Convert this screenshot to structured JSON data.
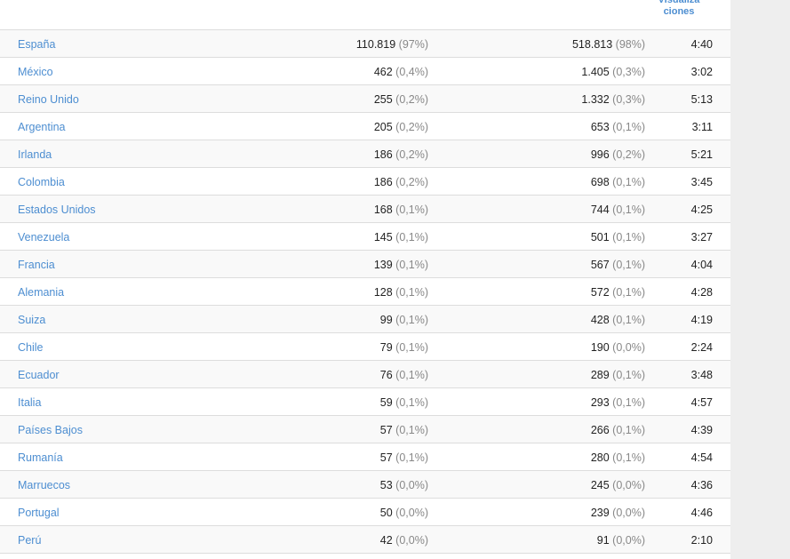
{
  "header": {
    "column_label": "Visualiza ciones"
  },
  "rows": [
    {
      "country": "España",
      "sessions": "110.819",
      "sessions_pct": "(97%)",
      "views": "518.813",
      "views_pct": "(98%)",
      "duration": "4:40"
    },
    {
      "country": "México",
      "sessions": "462",
      "sessions_pct": "(0,4%)",
      "views": "1.405",
      "views_pct": "(0,3%)",
      "duration": "3:02"
    },
    {
      "country": "Reino Unido",
      "sessions": "255",
      "sessions_pct": "(0,2%)",
      "views": "1.332",
      "views_pct": "(0,3%)",
      "duration": "5:13"
    },
    {
      "country": "Argentina",
      "sessions": "205",
      "sessions_pct": "(0,2%)",
      "views": "653",
      "views_pct": "(0,1%)",
      "duration": "3:11"
    },
    {
      "country": "Irlanda",
      "sessions": "186",
      "sessions_pct": "(0,2%)",
      "views": "996",
      "views_pct": "(0,2%)",
      "duration": "5:21"
    },
    {
      "country": "Colombia",
      "sessions": "186",
      "sessions_pct": "(0,2%)",
      "views": "698",
      "views_pct": "(0,1%)",
      "duration": "3:45"
    },
    {
      "country": "Estados Unidos",
      "sessions": "168",
      "sessions_pct": "(0,1%)",
      "views": "744",
      "views_pct": "(0,1%)",
      "duration": "4:25"
    },
    {
      "country": "Venezuela",
      "sessions": "145",
      "sessions_pct": "(0,1%)",
      "views": "501",
      "views_pct": "(0,1%)",
      "duration": "3:27"
    },
    {
      "country": "Francia",
      "sessions": "139",
      "sessions_pct": "(0,1%)",
      "views": "567",
      "views_pct": "(0,1%)",
      "duration": "4:04"
    },
    {
      "country": "Alemania",
      "sessions": "128",
      "sessions_pct": "(0,1%)",
      "views": "572",
      "views_pct": "(0,1%)",
      "duration": "4:28"
    },
    {
      "country": "Suiza",
      "sessions": "99",
      "sessions_pct": "(0,1%)",
      "views": "428",
      "views_pct": "(0,1%)",
      "duration": "4:19"
    },
    {
      "country": "Chile",
      "sessions": "79",
      "sessions_pct": "(0,1%)",
      "views": "190",
      "views_pct": "(0,0%)",
      "duration": "2:24"
    },
    {
      "country": "Ecuador",
      "sessions": "76",
      "sessions_pct": "(0,1%)",
      "views": "289",
      "views_pct": "(0,1%)",
      "duration": "3:48"
    },
    {
      "country": "Italia",
      "sessions": "59",
      "sessions_pct": "(0,1%)",
      "views": "293",
      "views_pct": "(0,1%)",
      "duration": "4:57"
    },
    {
      "country": "Países Bajos",
      "sessions": "57",
      "sessions_pct": "(0,1%)",
      "views": "266",
      "views_pct": "(0,1%)",
      "duration": "4:39"
    },
    {
      "country": "Rumanía",
      "sessions": "57",
      "sessions_pct": "(0,1%)",
      "views": "280",
      "views_pct": "(0,1%)",
      "duration": "4:54"
    },
    {
      "country": "Marruecos",
      "sessions": "53",
      "sessions_pct": "(0,0%)",
      "views": "245",
      "views_pct": "(0,0%)",
      "duration": "4:36"
    },
    {
      "country": "Portugal",
      "sessions": "50",
      "sessions_pct": "(0,0%)",
      "views": "239",
      "views_pct": "(0,0%)",
      "duration": "4:46"
    },
    {
      "country": "Perú",
      "sessions": "42",
      "sessions_pct": "(0,0%)",
      "views": "91",
      "views_pct": "(0,0%)",
      "duration": "2:10"
    }
  ]
}
